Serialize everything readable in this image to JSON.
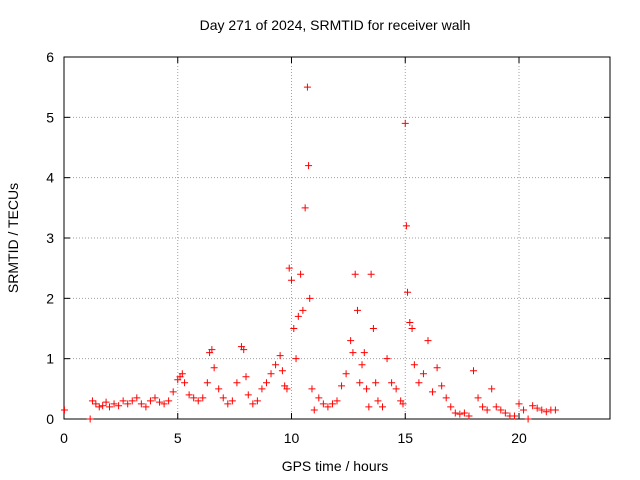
{
  "chart_data": {
    "type": "scatter",
    "title": "Day 271 of 2024, SRMTID for receiver walh",
    "xlabel": "GPS time / hours",
    "ylabel": "SRMTID / TECUs",
    "xlim": [
      0,
      24
    ],
    "ylim": [
      0,
      6
    ],
    "xticks": [
      0,
      5,
      10,
      15,
      20
    ],
    "yticks": [
      0,
      1,
      2,
      3,
      4,
      5,
      6
    ],
    "grid": true,
    "marker": "+",
    "color": "#ff0000",
    "series": [
      {
        "name": "SRMTID",
        "x": [
          0.02,
          1.15,
          1.25,
          1.4,
          1.55,
          1.7,
          1.85,
          2.0,
          2.2,
          2.4,
          2.6,
          2.8,
          3.0,
          3.2,
          3.4,
          3.6,
          3.8,
          4.0,
          4.2,
          4.4,
          4.6,
          4.8,
          5.0,
          5.1,
          5.2,
          5.3,
          5.5,
          5.7,
          5.9,
          6.1,
          6.3,
          6.4,
          6.5,
          6.6,
          6.8,
          7.0,
          7.2,
          7.4,
          7.6,
          7.8,
          7.9,
          8.0,
          8.1,
          8.3,
          8.5,
          8.7,
          8.9,
          9.1,
          9.3,
          9.5,
          9.6,
          9.7,
          9.8,
          9.9,
          10.0,
          10.1,
          10.2,
          10.3,
          10.4,
          10.5,
          10.6,
          10.7,
          10.75,
          10.8,
          10.9,
          11.0,
          11.2,
          11.4,
          11.6,
          11.8,
          12.0,
          12.2,
          12.4,
          12.6,
          12.7,
          12.8,
          12.9,
          13.0,
          13.1,
          13.2,
          13.3,
          13.4,
          13.5,
          13.6,
          13.7,
          13.8,
          14.0,
          14.2,
          14.4,
          14.6,
          14.8,
          14.9,
          15.0,
          15.05,
          15.1,
          15.2,
          15.3,
          15.4,
          15.6,
          15.8,
          16.0,
          16.2,
          16.4,
          16.6,
          16.8,
          17.0,
          17.2,
          17.4,
          17.6,
          17.8,
          18.0,
          18.2,
          18.4,
          18.6,
          18.8,
          19.0,
          19.2,
          19.4,
          19.6,
          19.8,
          20.0,
          20.2,
          20.4,
          20.6,
          20.8,
          21.0,
          21.2,
          21.4,
          21.6
        ],
        "y": [
          0.15,
          0.0,
          0.3,
          0.25,
          0.2,
          0.22,
          0.28,
          0.2,
          0.25,
          0.22,
          0.3,
          0.25,
          0.3,
          0.35,
          0.25,
          0.2,
          0.3,
          0.35,
          0.28,
          0.25,
          0.3,
          0.45,
          0.65,
          0.7,
          0.75,
          0.6,
          0.4,
          0.35,
          0.3,
          0.35,
          0.6,
          1.1,
          1.15,
          0.85,
          0.5,
          0.35,
          0.25,
          0.3,
          0.6,
          1.2,
          1.15,
          0.7,
          0.4,
          0.25,
          0.3,
          0.5,
          0.6,
          0.75,
          0.9,
          1.05,
          0.8,
          0.55,
          0.5,
          2.5,
          2.3,
          1.5,
          1.0,
          1.7,
          2.4,
          1.8,
          3.5,
          5.5,
          4.2,
          2.0,
          0.5,
          0.15,
          0.35,
          0.25,
          0.2,
          0.25,
          0.3,
          0.55,
          0.75,
          1.3,
          1.1,
          2.4,
          1.8,
          0.6,
          0.9,
          1.1,
          0.5,
          0.2,
          2.4,
          1.5,
          0.6,
          0.3,
          0.2,
          1.0,
          0.6,
          0.5,
          0.3,
          0.25,
          4.9,
          3.2,
          2.1,
          1.6,
          1.5,
          0.9,
          0.6,
          0.75,
          1.3,
          0.45,
          0.85,
          0.55,
          0.35,
          0.2,
          0.1,
          0.08,
          0.1,
          0.05,
          0.8,
          0.35,
          0.2,
          0.15,
          0.5,
          0.2,
          0.15,
          0.1,
          0.05,
          0.05,
          0.25,
          0.15,
          0.0,
          0.22,
          0.18,
          0.15,
          0.12,
          0.15,
          0.15
        ]
      }
    ]
  }
}
